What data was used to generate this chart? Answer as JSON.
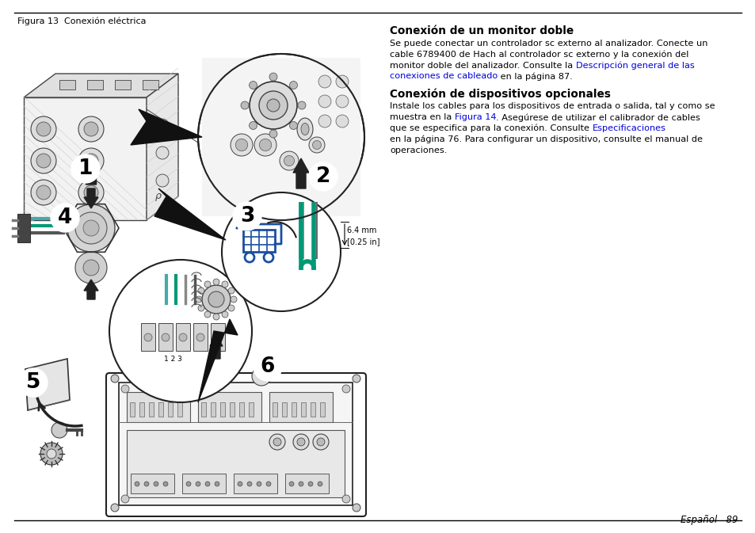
{
  "title_left": "Figura 13  Conexión eléctrica",
  "heading1": "Conexión de un monitor doble",
  "para1_line1": "Se puede conectar un controlador sc externo al analizador. Conecte un",
  "para1_line2": "cable 6789400 de Hach al controlador sc externo y la conexión del",
  "para1_line3a": "monitor doble del analizador. Consulte la ",
  "para1_line3b": "Descripción general de las",
  "para1_line4a": "conexiones de cableado",
  "para1_line4b": " en la página 87.",
  "heading2": "Conexión de dispositivos opcionales",
  "para2_line1": "Instale los cables para los dispositivos de entrada o salida, tal y como se",
  "para2_line2a": "muestra en la ",
  "para2_line2b": "Figura 14",
  "para2_line2c": ". Asegúrese de utilizar el calibrador de cables",
  "para2_line3a": "que se especifica para la conexión. Consulte ",
  "para2_line3b": "Especificaciones",
  "para2_line4": "en la página 76. Para configurar un dispositivo, consulte el manual de",
  "para2_line5": "operaciones.",
  "footer": "Español   89",
  "annotation": "6.4 mm\n[0.25 in]",
  "label_123": "1 2 3",
  "bg": "#ffffff",
  "black": "#000000",
  "blue_link": "#0000dd",
  "cart_blue": "#1a4fa0",
  "green_wire": "#009977",
  "teal_wire": "#44aaaa",
  "dark": "#222222",
  "gray": "#888888",
  "lightgray": "#cccccc",
  "panel_bg": "#e8e8e8",
  "device_bg": "#f0f0f0",
  "lw_border": 1.2
}
